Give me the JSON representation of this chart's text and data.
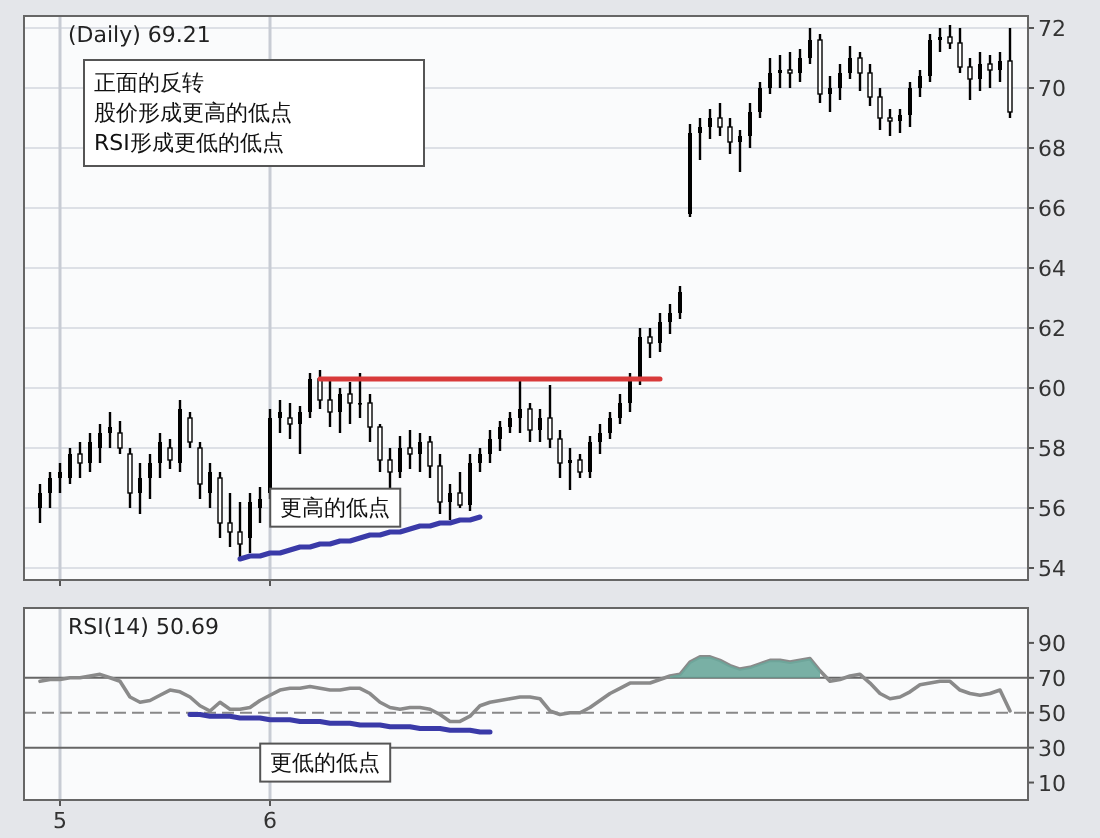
{
  "chart_data": [
    {
      "type": "candlestick",
      "title": "(Daily) 69.21",
      "annotations": [
        "正面的反转",
        "股价形成更高的低点",
        "RSI形成更低的低点",
        "更高的低点"
      ],
      "categories": [
        null,
        null,
        "5",
        null,
        null,
        null,
        null,
        null,
        null,
        null,
        null,
        null,
        null,
        null,
        null,
        null,
        null,
        null,
        null,
        null,
        null,
        null,
        null,
        "6",
        null,
        null,
        null,
        null,
        null,
        null,
        null,
        null,
        null,
        null,
        null,
        null,
        null,
        null,
        null,
        null,
        null,
        null,
        null,
        null,
        null,
        null,
        null,
        null,
        null,
        null,
        null,
        null,
        null,
        null,
        null,
        null,
        null,
        null,
        null,
        null,
        null,
        null,
        null,
        null,
        null,
        null,
        null,
        null,
        null,
        null,
        null,
        null,
        null,
        null,
        null,
        null,
        null,
        null,
        null,
        null,
        null,
        null,
        null,
        null,
        null,
        null,
        null,
        null,
        null,
        null,
        null,
        null,
        null,
        null,
        null,
        null,
        null,
        null
      ],
      "ohlc": [
        [
          56,
          56.8,
          55.5,
          56.5
        ],
        [
          56.5,
          57.2,
          56,
          57
        ],
        [
          57,
          57.5,
          56.5,
          57.2
        ],
        [
          57,
          58,
          56.8,
          57.8
        ],
        [
          57.8,
          58.2,
          57,
          57.5
        ],
        [
          57.5,
          58.5,
          57.2,
          58.2
        ],
        [
          58,
          58.8,
          57.5,
          58.5
        ],
        [
          58.5,
          59.2,
          58,
          58.7
        ],
        [
          58.5,
          58.9,
          57.8,
          58
        ],
        [
          57.8,
          58,
          56,
          56.5
        ],
        [
          56.5,
          57.5,
          55.8,
          57
        ],
        [
          57,
          57.8,
          56.3,
          57.5
        ],
        [
          57.5,
          58.5,
          57,
          58.2
        ],
        [
          58,
          58.3,
          57.3,
          57.6
        ],
        [
          57.5,
          59.6,
          57.2,
          59.3
        ],
        [
          59,
          59.2,
          58,
          58.2
        ],
        [
          58,
          58.2,
          56.3,
          56.8
        ],
        [
          56.5,
          57.5,
          56,
          57.2
        ],
        [
          57,
          57.2,
          55,
          55.5
        ],
        [
          55.5,
          56.5,
          54.7,
          55.2
        ],
        [
          55.2,
          56.2,
          54.3,
          54.8
        ],
        [
          55,
          56.5,
          54.5,
          56.2
        ],
        [
          56,
          56.7,
          55.5,
          56.3
        ],
        [
          56.5,
          59.3,
          56.3,
          59
        ],
        [
          59,
          59.6,
          58.5,
          59.2
        ],
        [
          59,
          59.5,
          58.3,
          58.8
        ],
        [
          58.8,
          59.4,
          57.8,
          59.2
        ],
        [
          59.2,
          60.5,
          59,
          60.3
        ],
        [
          60.3,
          60.6,
          59.3,
          59.6
        ],
        [
          59.6,
          60.3,
          58.7,
          59.2
        ],
        [
          59.2,
          60,
          58.5,
          59.8
        ],
        [
          59.8,
          60.2,
          58.8,
          59.5
        ],
        [
          59.5,
          60.5,
          59,
          59.5
        ],
        [
          59.5,
          59.8,
          58.2,
          58.7
        ],
        [
          58.7,
          58.8,
          57.2,
          57.6
        ],
        [
          57.6,
          58,
          56.6,
          57.2
        ],
        [
          57.2,
          58.4,
          57,
          58
        ],
        [
          58,
          58.6,
          57.3,
          57.8
        ],
        [
          57.8,
          58.5,
          57.2,
          58.2
        ],
        [
          58.2,
          58.4,
          57,
          57.4
        ],
        [
          57.4,
          57.8,
          55.8,
          56.2
        ],
        [
          56.2,
          56.8,
          55.6,
          56.5
        ],
        [
          56.5,
          57.2,
          56,
          56.1
        ],
        [
          56.1,
          57.8,
          55.9,
          57.5
        ],
        [
          57.5,
          58,
          57.2,
          57.8
        ],
        [
          57.8,
          58.6,
          57.5,
          58.3
        ],
        [
          58.3,
          58.9,
          57.9,
          58.7
        ],
        [
          58.7,
          59.2,
          58.5,
          59
        ],
        [
          59,
          60.3,
          58.5,
          59.3
        ],
        [
          59.3,
          59.5,
          58.2,
          58.6
        ],
        [
          58.6,
          59.3,
          58.2,
          59
        ],
        [
          59,
          60.1,
          58,
          58.3
        ],
        [
          58.3,
          58.6,
          57,
          57.5
        ],
        [
          57.5,
          58,
          56.6,
          57.6
        ],
        [
          57.6,
          57.8,
          57,
          57.2
        ],
        [
          57.2,
          58.4,
          57,
          58.2
        ],
        [
          58.2,
          58.8,
          57.8,
          58.5
        ],
        [
          58.5,
          59.2,
          58.3,
          59
        ],
        [
          59,
          59.8,
          58.8,
          59.5
        ],
        [
          59.5,
          60.5,
          59.2,
          60.3
        ],
        [
          60.3,
          62,
          60.1,
          61.7
        ],
        [
          61.7,
          62,
          61,
          61.5
        ],
        [
          61.5,
          62.5,
          61.2,
          62.2
        ],
        [
          62.2,
          62.8,
          61.8,
          62.5
        ],
        [
          62.5,
          63.4,
          62.3,
          63.2
        ],
        [
          65.8,
          68.8,
          65.7,
          68.5
        ],
        [
          68.5,
          69,
          67.6,
          68.7
        ],
        [
          68.7,
          69.3,
          68.3,
          69
        ],
        [
          69,
          69.5,
          68.4,
          68.7
        ],
        [
          68.7,
          69,
          67.8,
          68.2
        ],
        [
          68.2,
          68.6,
          67.2,
          68.4
        ],
        [
          68.4,
          69.5,
          68,
          69.2
        ],
        [
          69.2,
          70.2,
          69,
          70
        ],
        [
          70,
          71,
          69.8,
          70.5
        ],
        [
          70.5,
          71.1,
          70,
          70.6
        ],
        [
          70.6,
          71.2,
          70,
          70.5
        ],
        [
          70.5,
          71.3,
          70.2,
          71
        ],
        [
          71,
          72,
          70.8,
          71.6
        ],
        [
          71.6,
          71.8,
          69.5,
          69.8
        ],
        [
          69.8,
          70.4,
          69.2,
          70
        ],
        [
          70,
          70.8,
          69.6,
          70.5
        ],
        [
          70.5,
          71.4,
          70.3,
          71
        ],
        [
          71,
          71.2,
          69.9,
          70.5
        ],
        [
          70.5,
          70.8,
          69.4,
          69.7
        ],
        [
          69.7,
          70,
          68.6,
          69
        ],
        [
          69,
          69.3,
          68.4,
          68.9
        ],
        [
          68.9,
          69.3,
          68.5,
          69.1
        ],
        [
          69.1,
          70.2,
          68.7,
          70
        ],
        [
          70,
          70.6,
          69.7,
          70.4
        ],
        [
          70.4,
          71.8,
          70.2,
          71.6
        ],
        [
          71.6,
          72,
          71.2,
          71.7
        ],
        [
          71.7,
          72.1,
          71.3,
          71.5
        ],
        [
          71.5,
          72,
          70.5,
          70.7
        ],
        [
          70.7,
          71,
          69.6,
          70.3
        ],
        [
          70.3,
          71.2,
          69.9,
          70.8
        ],
        [
          70.8,
          71.1,
          70,
          70.6
        ],
        [
          70.6,
          71.2,
          70.2,
          70.9
        ],
        [
          70.9,
          72,
          69,
          69.2
        ]
      ],
      "color": "#000000",
      "series": [
        {
          "type": "line",
          "color": "#d83a3a",
          "values": [
            null,
            null,
            null,
            null,
            null,
            null,
            null,
            null,
            null,
            null,
            null,
            null,
            null,
            null,
            null,
            null,
            null,
            null,
            null,
            null,
            null,
            null,
            null,
            null,
            null,
            null,
            null,
            null,
            60.3,
            60.3,
            60.3,
            60.3,
            60.3,
            60.3,
            60.3,
            60.3,
            60.3,
            60.3,
            60.3,
            60.3,
            60.3,
            60.3,
            60.3,
            60.3,
            60.3,
            60.3,
            60.3,
            60.3,
            60.3,
            60.3,
            60.3,
            60.3,
            60.3,
            60.3,
            60.3,
            60.3,
            60.3,
            60.3,
            60.3,
            60.3,
            60.3,
            60.3,
            60.3,
            null,
            null,
            null,
            null,
            null,
            null,
            null,
            null,
            null,
            null,
            null,
            null,
            null,
            null,
            null,
            null,
            null,
            null,
            null,
            null,
            null,
            null,
            null,
            null,
            null,
            null,
            null,
            null,
            null,
            null,
            null,
            null,
            null,
            null,
            null
          ]
        },
        {
          "type": "line",
          "color": "#3a3aa8",
          "values": [
            null,
            null,
            null,
            null,
            null,
            null,
            null,
            null,
            null,
            null,
            null,
            null,
            null,
            null,
            null,
            null,
            null,
            null,
            null,
            null,
            54.3,
            54.4,
            54.4,
            54.5,
            54.5,
            54.6,
            54.7,
            54.7,
            54.8,
            54.8,
            54.9,
            54.9,
            55,
            55.1,
            55.1,
            55.2,
            55.2,
            55.3,
            55.4,
            55.4,
            55.5,
            55.5,
            55.6,
            55.6,
            55.7,
            null,
            null,
            null,
            null,
            null,
            null,
            null,
            null,
            null,
            null,
            null,
            null,
            null,
            null,
            null,
            null,
            null,
            null,
            null,
            null,
            null,
            null,
            null,
            null,
            null,
            null,
            null,
            null,
            null,
            null,
            null,
            null,
            null,
            null,
            null,
            null,
            null,
            null,
            null,
            null,
            null,
            null,
            null,
            null,
            null,
            null,
            null,
            null,
            null,
            null,
            null,
            null,
            null
          ]
        }
      ],
      "ylim": [
        53.6,
        72.4
      ],
      "yticks": [
        54,
        56,
        58,
        60,
        62,
        64,
        66,
        68,
        70,
        72
      ],
      "tick_labels": "y",
      "grid": true
    },
    {
      "type": "line",
      "title": "RSI(14) 50.69",
      "annotations": [
        "更低的低点"
      ],
      "categories": [
        null,
        null,
        "5",
        null,
        null,
        null,
        null,
        null,
        null,
        null,
        null,
        null,
        null,
        null,
        null,
        null,
        null,
        null,
        null,
        null,
        null,
        null,
        null,
        "6",
        null,
        null,
        null,
        null,
        null,
        null,
        null,
        null,
        null,
        null,
        null,
        null,
        null,
        null,
        null,
        null,
        null,
        null,
        null,
        null,
        null,
        null,
        null,
        null,
        null,
        null,
        null,
        null,
        null,
        null,
        null,
        null,
        null,
        null,
        null,
        null,
        null,
        null,
        null,
        null,
        null,
        null,
        null,
        null,
        null,
        null,
        null,
        null,
        null,
        null,
        null,
        null,
        null,
        null,
        null,
        null,
        null,
        null,
        null,
        null,
        null,
        null,
        null,
        null,
        null,
        null,
        null,
        null,
        null,
        null,
        null,
        null,
        null,
        null
      ],
      "series": [
        {
          "type": "line",
          "color": "#8a8a8a",
          "values": [
            68,
            69,
            69,
            70,
            70,
            71,
            72,
            70,
            68,
            59,
            56,
            57,
            60,
            63,
            62,
            59,
            54,
            51,
            56,
            52,
            52,
            53,
            57,
            60,
            63,
            64,
            64,
            65,
            64,
            63,
            63,
            64,
            64,
            61,
            56,
            53,
            52,
            53,
            53,
            52,
            49,
            45,
            45,
            48,
            54,
            56,
            57,
            58,
            59,
            59,
            58,
            51,
            49,
            50,
            50,
            53,
            57,
            61,
            64,
            67,
            67,
            67,
            69,
            71,
            72,
            79,
            82,
            82,
            80,
            77,
            75,
            76,
            78,
            80,
            80,
            79,
            80,
            81,
            74,
            68,
            69,
            71,
            72,
            67,
            61,
            58,
            59,
            62,
            66,
            67,
            68,
            68,
            63,
            61,
            60,
            61,
            63,
            51
          ]
        },
        {
          "type": "area",
          "color": "#6aa79b",
          "values": [
            null,
            null,
            null,
            null,
            null,
            null,
            null,
            null,
            null,
            null,
            null,
            null,
            null,
            null,
            null,
            null,
            null,
            null,
            null,
            null,
            null,
            null,
            null,
            null,
            null,
            null,
            null,
            null,
            null,
            null,
            null,
            null,
            null,
            null,
            null,
            null,
            null,
            null,
            null,
            null,
            null,
            null,
            null,
            null,
            null,
            null,
            null,
            null,
            null,
            null,
            null,
            null,
            null,
            null,
            null,
            null,
            null,
            null,
            null,
            null,
            null,
            null,
            null,
            71,
            72,
            79,
            82,
            82,
            80,
            77,
            75,
            76,
            78,
            80,
            80,
            79,
            80,
            81,
            74,
            null,
            null,
            null,
            null,
            null,
            null,
            null,
            null,
            null,
            null,
            null,
            null,
            null,
            null,
            null,
            null,
            null,
            null,
            null
          ],
          "name": null
        },
        {
          "type": "line",
          "color": "#3a3aa8",
          "values": [
            null,
            null,
            null,
            null,
            null,
            null,
            null,
            null,
            null,
            null,
            null,
            null,
            null,
            null,
            null,
            49,
            49,
            48,
            48,
            48,
            47,
            47,
            47,
            46,
            46,
            46,
            45,
            45,
            45,
            44,
            44,
            44,
            43,
            43,
            43,
            42,
            42,
            42,
            41,
            41,
            41,
            40,
            40,
            40,
            39,
            39,
            null,
            null,
            null,
            null,
            null,
            null,
            null,
            null,
            null,
            null,
            null,
            null,
            null,
            null,
            null,
            null,
            null,
            null,
            null,
            null,
            null,
            null,
            null,
            null,
            null,
            null,
            null,
            null,
            null,
            null,
            null,
            null,
            null,
            null,
            null,
            null,
            null,
            null,
            null,
            null,
            null,
            null,
            null,
            null,
            null,
            null,
            null,
            null,
            null,
            null,
            null,
            null
          ]
        }
      ],
      "ref_lines": [
        {
          "axis": "y",
          "value": 70,
          "color": "#666666"
        },
        {
          "axis": "y",
          "value": 50,
          "color": "#888888",
          "line_style": "dashed"
        },
        {
          "axis": "y",
          "value": 30,
          "color": "#666666"
        }
      ],
      "ylim": [
        0,
        110
      ],
      "yticks": [
        10,
        30,
        50,
        70,
        90
      ],
      "grid": "x"
    }
  ]
}
